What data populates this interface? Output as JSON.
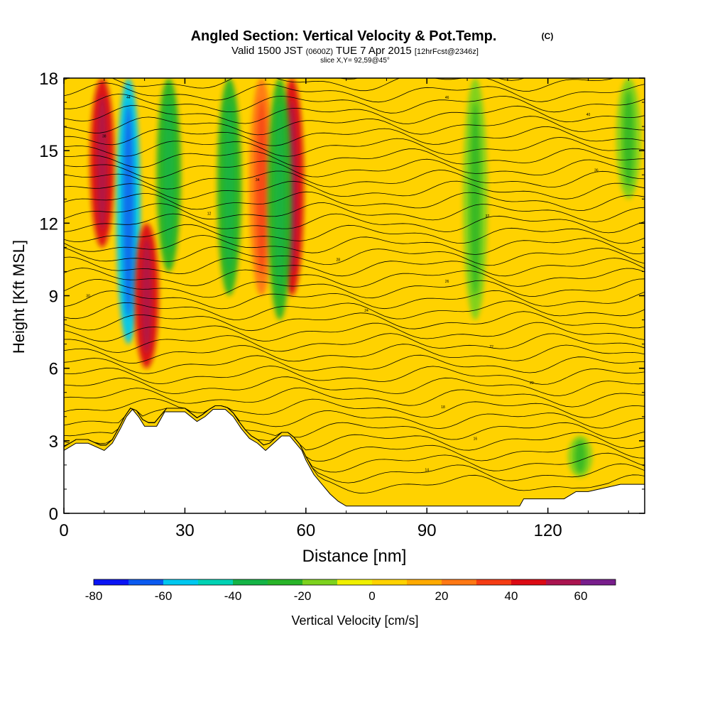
{
  "chart_data": {
    "type": "heatmap",
    "title": "Angled Section: Vertical Velocity & Pot.Temp.",
    "title_unit": "(C)",
    "subtitle": {
      "valid_prefix": "Valid 1500 JST",
      "utc": "(0600Z)",
      "date": "TUE 7 Apr 2015",
      "forecast": "[12hrFcst@2346z]"
    },
    "slice_label": "slice X,Y= 92,59@45°",
    "xlabel": "Distance [nm]",
    "ylabel": "Height [Kft MSL]",
    "xlim": [
      0,
      144
    ],
    "ylim": [
      0,
      18
    ],
    "xticks": [
      0,
      30,
      60,
      90,
      120
    ],
    "yticks": [
      0,
      3,
      6,
      9,
      12,
      15,
      18
    ],
    "background_value_cm_s": 5,
    "colorbar": {
      "label": "Vertical Velocity [cm/s]",
      "bounds": [
        -80,
        -70,
        -60,
        -50,
        -40,
        -30,
        -20,
        -10,
        0,
        10,
        20,
        30,
        40,
        50,
        60,
        70
      ],
      "colors": [
        "#0a14f5",
        "#0a5af0",
        "#00c8f0",
        "#00d2b4",
        "#14b446",
        "#28b428",
        "#7dd21e",
        "#f0f000",
        "#ffd200",
        "#ffaa00",
        "#ff7814",
        "#f53c14",
        "#dc0a14",
        "#aa1450",
        "#781e8c"
      ],
      "tick_labels": [
        -80,
        -60,
        -40,
        -20,
        0,
        20,
        40,
        60
      ]
    },
    "features": [
      {
        "name": "updraft",
        "x_center": 9.5,
        "y_min": 11,
        "y_max": 18,
        "value": 45
      },
      {
        "name": "downdraft",
        "x_center": 16,
        "y_min": 7,
        "y_max": 18,
        "value": -55
      },
      {
        "name": "updraft",
        "x_center": 20.5,
        "y_min": 6,
        "y_max": 12,
        "value": 40
      },
      {
        "name": "downdraft",
        "x_center": 26,
        "y_min": 10,
        "y_max": 18,
        "value": -25
      },
      {
        "name": "downdraft",
        "x_center": 41,
        "y_min": 9,
        "y_max": 18,
        "value": -25
      },
      {
        "name": "updraft",
        "x_center": 49,
        "y_min": 9,
        "y_max": 18,
        "value": 25
      },
      {
        "name": "updraft",
        "x_center": 56.5,
        "y_min": 9,
        "y_max": 18,
        "value": 45
      },
      {
        "name": "downdraft",
        "x_center": 53.5,
        "y_min": 8,
        "y_max": 18,
        "value": -25
      },
      {
        "name": "downdraft",
        "x_center": 102,
        "y_min": 8,
        "y_max": 18,
        "value": -20
      },
      {
        "name": "downdraft",
        "x_center": 140,
        "y_min": 13,
        "y_max": 18,
        "value": -20
      },
      {
        "name": "downdraft",
        "x_center": 128,
        "y_min": 1.5,
        "y_max": 3.2,
        "value": -20
      }
    ],
    "terrain": {
      "x": [
        0,
        3,
        6,
        10,
        12,
        14,
        15.5,
        17,
        18.5,
        20,
        23,
        25,
        30,
        33,
        35,
        37,
        40,
        42,
        44,
        46,
        48,
        50,
        52,
        54,
        56,
        59,
        60,
        62,
        64,
        66,
        68,
        70,
        100,
        113,
        114,
        118,
        120,
        124,
        127,
        130,
        138,
        144
      ],
      "y": [
        2.6,
        2.9,
        2.9,
        2.6,
        2.9,
        3.5,
        4.0,
        4.3,
        4.0,
        3.6,
        3.6,
        4.2,
        4.2,
        3.8,
        4.0,
        4.3,
        4.3,
        4.0,
        3.5,
        3.1,
        2.9,
        2.6,
        2.9,
        3.2,
        3.2,
        2.6,
        2.2,
        1.6,
        1.2,
        0.8,
        0.5,
        0.3,
        0.3,
        0.3,
        0.6,
        0.6,
        0.6,
        0.6,
        0.9,
        0.9,
        1.2,
        1.2
      ]
    },
    "contour_labels": [
      "44",
      "46",
      "40",
      "38",
      "36",
      "34",
      "32",
      "30",
      "28",
      "26",
      "24",
      "22",
      "20",
      "18",
      "16",
      "14",
      "12"
    ]
  }
}
